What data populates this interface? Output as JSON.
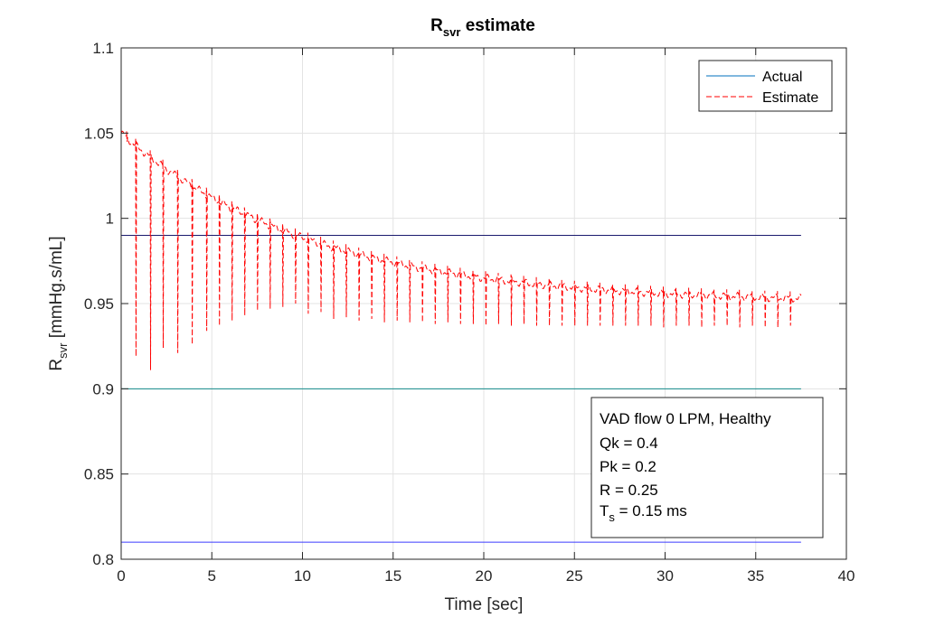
{
  "chart_data": {
    "type": "line",
    "title": {
      "main": "R",
      "sub": "svr",
      "rest": " estimate"
    },
    "xlabel": "Time [sec]",
    "ylabel": {
      "main": "R",
      "sub": "svr",
      "rest": " [mmHg.s/mL]"
    },
    "xlim": [
      0,
      40
    ],
    "ylim": [
      0.8,
      1.1
    ],
    "xticks": [
      0,
      5,
      10,
      15,
      20,
      25,
      30,
      35,
      40
    ],
    "yticks": [
      0.8,
      0.85,
      0.9,
      0.95,
      1,
      1.05,
      1.1
    ],
    "xtick_labels": [
      "0",
      "5",
      "10",
      "15",
      "20",
      "25",
      "30",
      "35",
      "40"
    ],
    "ytick_labels": [
      "0.8",
      "0.85",
      "0.9",
      "0.95",
      "1",
      "1.05",
      "1.1"
    ],
    "grid": true,
    "legend_position": "top-right",
    "legend": [
      {
        "label": "Actual",
        "color": "#0072bd",
        "style": "solid"
      },
      {
        "label": "Estimate",
        "color": "#ff0000",
        "style": "dashed"
      }
    ],
    "actual_lines": [
      {
        "y": 0.99,
        "x": [
          0,
          37.5
        ],
        "color": "#1a1a6e"
      },
      {
        "y": 0.9,
        "x": [
          0,
          37.5
        ],
        "color": "#138a8a"
      },
      {
        "y": 0.81,
        "x": [
          0,
          37.5
        ],
        "color": "#3a3aff"
      }
    ],
    "estimate": {
      "x_range": [
        0,
        37.5
      ],
      "y_start": 1.05,
      "y_end": 0.953,
      "spike_times": [
        0.3,
        0.8,
        1.6,
        2.3,
        3.1,
        3.9,
        4.7,
        5.4,
        6.1,
        6.8,
        7.5,
        8.2,
        8.9,
        9.6,
        10.3,
        11.0,
        11.7,
        12.4,
        13.1,
        13.8,
        14.5,
        15.2,
        15.9,
        16.6,
        17.3,
        18.0,
        18.7,
        19.4,
        20.1,
        20.8,
        21.5,
        22.2,
        22.9,
        23.6,
        24.3,
        25.0,
        25.7,
        26.4,
        27.1,
        27.8,
        28.5,
        29.2,
        29.9,
        30.6,
        31.3,
        32.0,
        32.7,
        33.4,
        34.1,
        34.8,
        35.5,
        36.2,
        36.9
      ],
      "spike_min": [
        1.045,
        0.919,
        0.911,
        0.924,
        0.921,
        0.926,
        0.934,
        0.937,
        0.94,
        0.943,
        0.946,
        0.947,
        0.948,
        0.95,
        0.944,
        0.945,
        0.941,
        0.942,
        0.94,
        0.941,
        0.939,
        0.94,
        0.939,
        0.939,
        0.938,
        0.939,
        0.938,
        0.938,
        0.937,
        0.938,
        0.937,
        0.938,
        0.937,
        0.937,
        0.937,
        0.937,
        0.937,
        0.937,
        0.937,
        0.937,
        0.937,
        0.937,
        0.936,
        0.937,
        0.937,
        0.936,
        0.937,
        0.937,
        0.936,
        0.937,
        0.936,
        0.936,
        0.937
      ]
    },
    "annotation_box": {
      "lines": [
        "VAD flow 0 LPM, Healthy",
        "Qk = 0.4",
        "Pk = 0.2",
        "R = 0.25"
      ],
      "ts": {
        "main": "T",
        "sub": "s",
        "rest": " = 0.15 ms"
      }
    }
  }
}
